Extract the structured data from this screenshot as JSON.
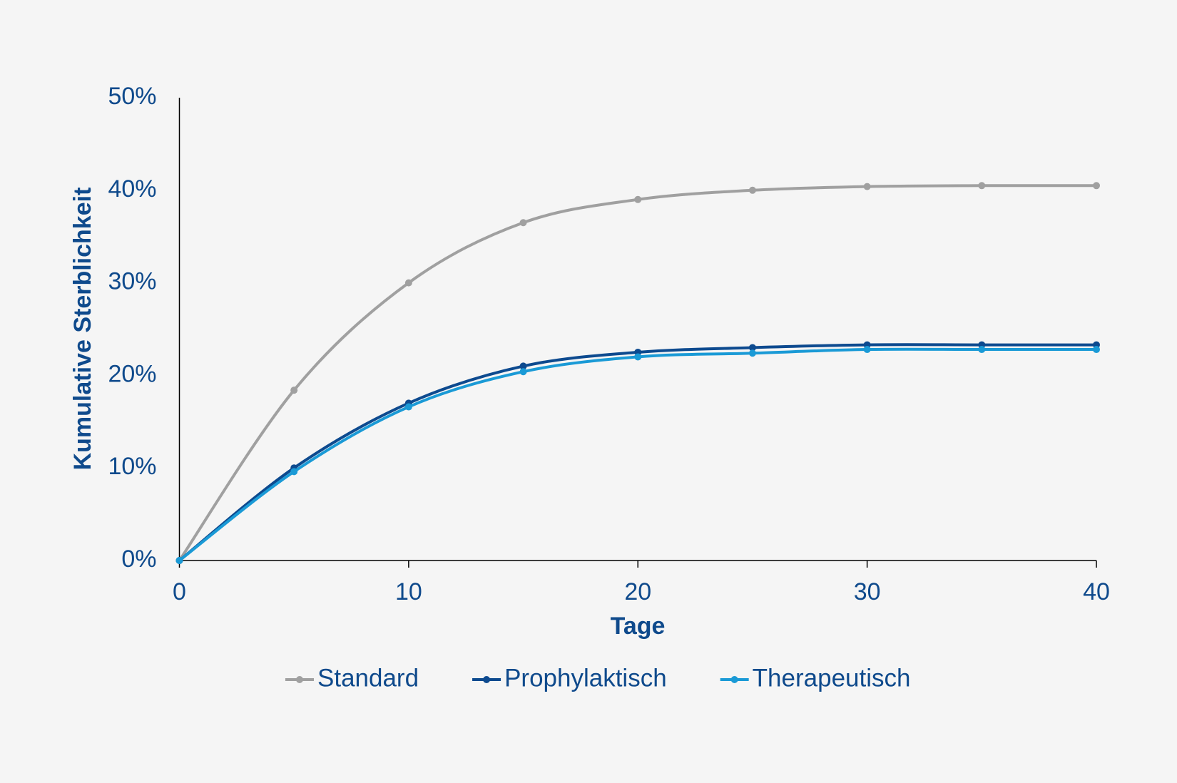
{
  "chart_data": {
    "type": "line",
    "x": [
      0,
      5,
      10,
      15,
      20,
      25,
      30,
      35,
      40
    ],
    "xlabel": "Tage",
    "ylabel": "Kumulative Sterblichkeit",
    "xlim": [
      0,
      40
    ],
    "xticks": [
      0,
      10,
      20,
      30,
      40
    ],
    "ylim": [
      0,
      50
    ],
    "yticks": [
      {
        "value": 0,
        "label": "0%"
      },
      {
        "value": 10,
        "label": "10%"
      },
      {
        "value": 20,
        "label": "20%"
      },
      {
        "value": 30,
        "label": "30%"
      },
      {
        "value": 40,
        "label": "40%"
      },
      {
        "value": 50,
        "label": "50%"
      }
    ],
    "grid": false,
    "legend": "bottom",
    "series": [
      {
        "name": "Standard",
        "color": "#a0a0a0",
        "values": [
          0,
          18.4,
          30.0,
          36.5,
          39.0,
          40.0,
          40.4,
          40.5,
          40.5
        ]
      },
      {
        "name": "Prophylaktisch",
        "color": "#0d4a8f",
        "values": [
          0,
          10.0,
          17.0,
          21.0,
          22.5,
          23.0,
          23.3,
          23.3,
          23.3
        ]
      },
      {
        "name": "Therapeutisch",
        "color": "#1a9ad6",
        "values": [
          0,
          9.6,
          16.6,
          20.4,
          22.0,
          22.4,
          22.8,
          22.8,
          22.8
        ]
      }
    ]
  }
}
